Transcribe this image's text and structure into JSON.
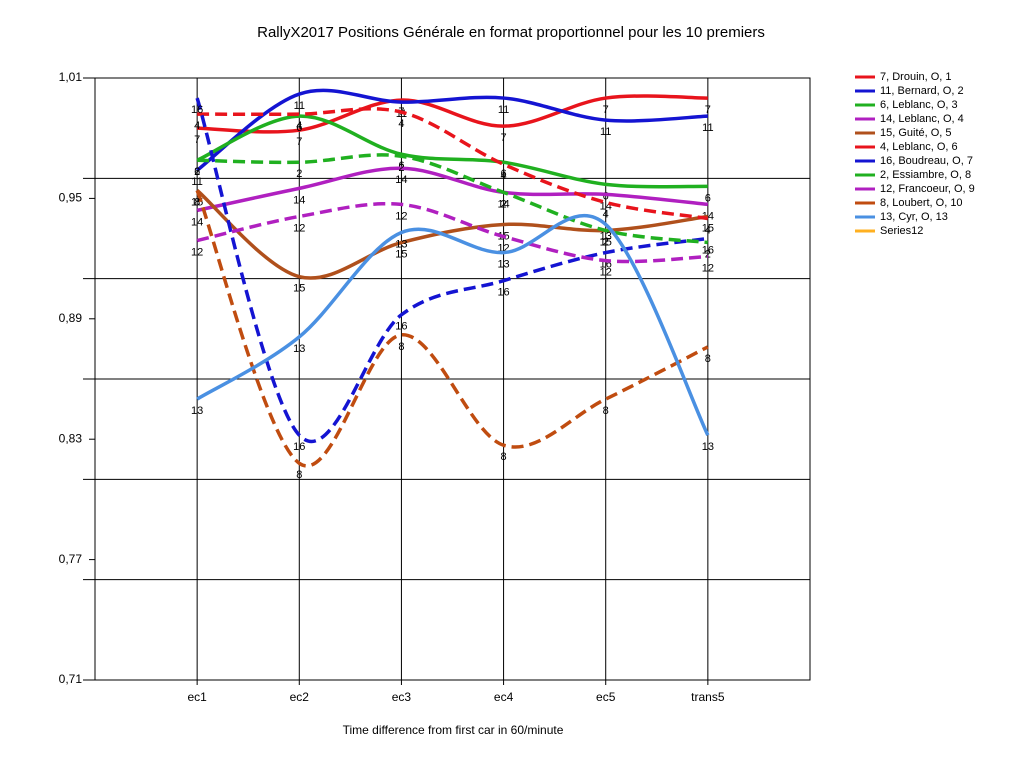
{
  "chart_data": {
    "type": "line",
    "title": "RallyX2017  Positions Générale en format proportionnel pour les 10 premiers",
    "x_label": "Time difference from first car in 60/minute",
    "categories": [
      "ec1",
      "ec2",
      "ec3",
      "ec4",
      "ec5",
      "trans5"
    ],
    "ylim": [
      0.71,
      1.01
    ],
    "yticks": [
      {
        "value": 1.01,
        "label": "1,01"
      },
      {
        "value": 0.95,
        "label": "0,95"
      },
      {
        "value": 0.89,
        "label": "0,89"
      },
      {
        "value": 0.83,
        "label": "0,83"
      },
      {
        "value": 0.77,
        "label": "0,77"
      },
      {
        "value": 0.71,
        "label": "0,71"
      }
    ],
    "ygrid": [
      1.01,
      0.96,
      0.91,
      0.86,
      0.81,
      0.76,
      0.71
    ],
    "grid": true,
    "legend": "right",
    "smooth": true,
    "series": [
      {
        "name": "7, Drouin, O, 1",
        "marker_label": "7",
        "color": "#e8141c",
        "dash": false,
        "values": [
          0.985,
          0.984,
          0.999,
          0.986,
          1.0,
          1.0
        ]
      },
      {
        "name": "11, Bernard, O, 2",
        "marker_label": "11",
        "color": "#1414d2",
        "dash": false,
        "values": [
          0.964,
          1.002,
          0.998,
          1.0,
          0.989,
          0.991
        ]
      },
      {
        "name": "6, Leblanc, O, 3",
        "marker_label": "6",
        "color": "#20b020",
        "dash": false,
        "values": [
          0.969,
          0.991,
          0.972,
          0.968,
          0.957,
          0.956
        ]
      },
      {
        "name": "14, Leblanc, O, 4",
        "marker_label": "14",
        "color": "#b020c0",
        "dash": false,
        "values": [
          0.944,
          0.955,
          0.965,
          0.953,
          0.952,
          0.947
        ]
      },
      {
        "name": "15, Guité, O, 5",
        "marker_label": "15",
        "color": "#b0501c",
        "dash": false,
        "values": [
          0.954,
          0.911,
          0.928,
          0.937,
          0.934,
          0.941
        ]
      },
      {
        "name": "4, Leblanc, O, 6",
        "marker_label": "4",
        "color": "#e8141c",
        "dash": true,
        "values": [
          0.992,
          0.992,
          0.993,
          0.967,
          0.948,
          0.94
        ]
      },
      {
        "name": "16, Boudreau, O, 7",
        "marker_label": "16",
        "color": "#1414d2",
        "dash": true,
        "values": [
          1.0,
          0.832,
          0.892,
          0.909,
          0.923,
          0.93
        ]
      },
      {
        "name": "2, Essiambre, O, 8",
        "marker_label": "2",
        "color": "#20b020",
        "dash": true,
        "values": [
          0.969,
          0.968,
          0.971,
          0.953,
          0.934,
          0.928
        ]
      },
      {
        "name": "12, Francoeur, O, 9",
        "marker_label": "12",
        "color": "#b020c0",
        "dash": true,
        "values": [
          0.929,
          0.941,
          0.947,
          0.931,
          0.919,
          0.921
        ]
      },
      {
        "name": "8, Loubert, O, 10",
        "marker_label": "8",
        "color": "#c04c10",
        "dash": true,
        "values": [
          0.954,
          0.818,
          0.882,
          0.827,
          0.85,
          0.876
        ]
      },
      {
        "name": "13, Cyr, O, 13",
        "marker_label": "13",
        "color": "#4a90e2",
        "dash": false,
        "values": [
          0.85,
          0.881,
          0.933,
          0.923,
          0.937,
          0.832
        ]
      },
      {
        "name": "Series12",
        "color": "#ffb020",
        "dash": false,
        "values": [
          null,
          null,
          null,
          null,
          null,
          null
        ]
      }
    ]
  }
}
